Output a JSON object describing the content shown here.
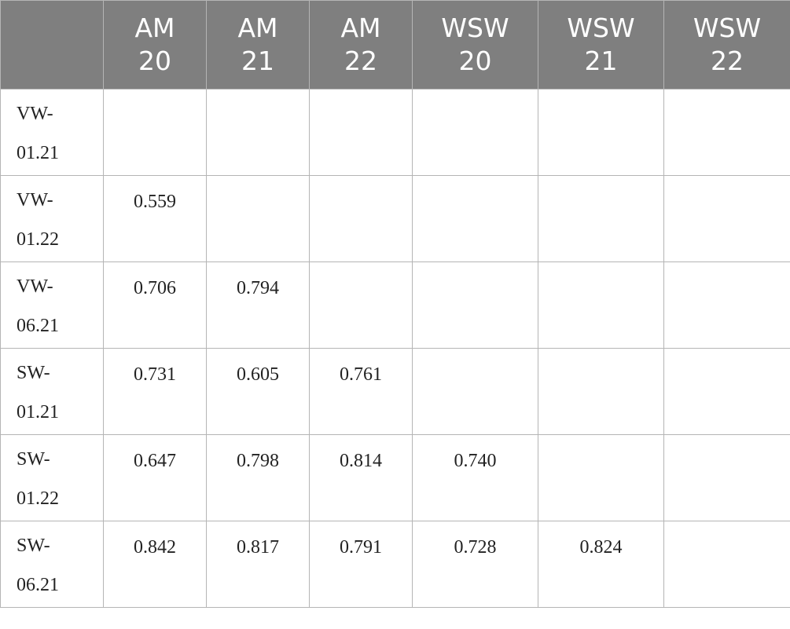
{
  "table": {
    "columns": [
      "AM 20",
      "AM 21",
      "AM 22",
      "WSW 20",
      "WSW 21",
      "WSW 22"
    ],
    "rows": [
      {
        "label": "VW-01.21",
        "values": []
      },
      {
        "label": "VW-01.22",
        "values": [
          "0.559"
        ]
      },
      {
        "label": "VW-06.21",
        "values": [
          "0.706",
          "0.794"
        ]
      },
      {
        "label": "SW-01.21",
        "values": [
          "0.731",
          "0.605",
          "0.761"
        ]
      },
      {
        "label": "SW-01.22",
        "values": [
          "0.647",
          "0.798",
          "0.814",
          "0.740"
        ]
      },
      {
        "label": "SW-06.21",
        "values": [
          "0.842",
          "0.817",
          "0.791",
          "0.728",
          "0.824"
        ]
      }
    ]
  }
}
